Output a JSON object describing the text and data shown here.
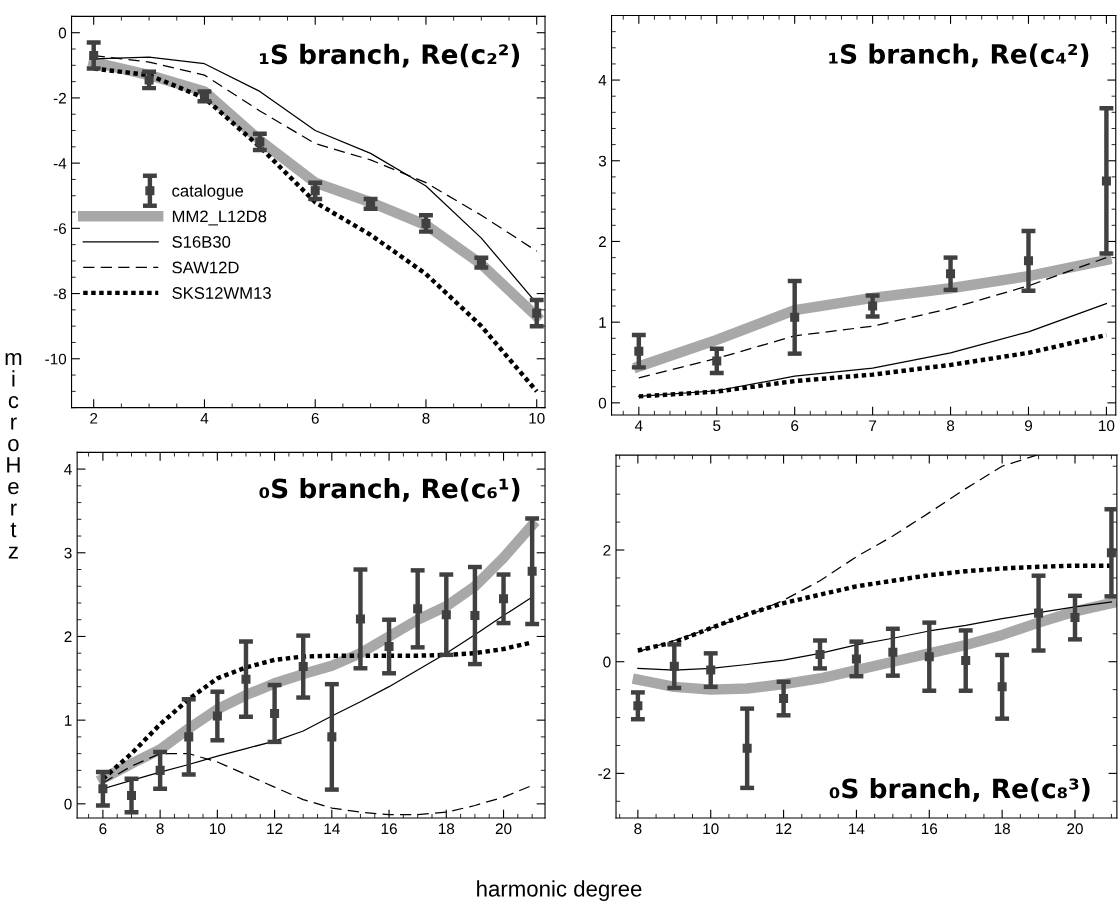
{
  "chart_data": [
    {
      "type": "line",
      "annotations": [
        "₁S branch, Re(c₂²)"
      ],
      "ylabel": "microHertz",
      "x": [
        2,
        3,
        4,
        5,
        6,
        7,
        8,
        9,
        10
      ],
      "xlim": [
        1.6,
        10.15
      ],
      "ylim": [
        -11.5,
        0.5
      ],
      "xticks": [
        2,
        4,
        6,
        8,
        10
      ],
      "yticks": [
        -10,
        -8,
        -6,
        -4,
        -2,
        0
      ],
      "legend": "center left",
      "grid": false,
      "series": [
        {
          "name": "catalogue",
          "type": "scatter",
          "marker": "square",
          "color": "#404040",
          "values": [
            -0.7,
            -1.45,
            -1.95,
            -3.35,
            -4.85,
            -5.25,
            -5.85,
            -7.05,
            -8.6
          ],
          "errors": [
            0.4,
            0.25,
            0.15,
            0.25,
            0.25,
            0.15,
            0.25,
            0.15,
            0.4
          ]
        },
        {
          "name": "MM2_L12D8",
          "color": "#a8a8a8",
          "line_style": "solid",
          "values": [
            -0.9,
            -1.3,
            -1.8,
            -3.3,
            -4.6,
            -5.2,
            -5.9,
            -7.1,
            -8.7
          ]
        },
        {
          "name": "S16B30",
          "color": "#000000",
          "line_style": "solid",
          "values": [
            -0.8,
            -0.75,
            -0.95,
            -1.8,
            -3.0,
            -3.7,
            -4.7,
            -6.3,
            -8.3
          ]
        },
        {
          "name": "SAW12D",
          "color": "#000000",
          "line_style": "dashed",
          "values": [
            -0.7,
            -0.9,
            -1.3,
            -2.4,
            -3.4,
            -3.9,
            -4.6,
            -5.6,
            -6.7
          ]
        },
        {
          "name": "SKS12WM13",
          "color": "#000000",
          "line_style": "dotted",
          "values": [
            -1.1,
            -1.3,
            -2.0,
            -3.5,
            -5.2,
            -6.2,
            -7.4,
            -9.0,
            -11.0
          ]
        }
      ]
    },
    {
      "type": "line",
      "annotations": [
        "₁S branch, Re(c₄²)"
      ],
      "x": [
        4,
        5,
        6,
        7,
        8,
        9,
        10
      ],
      "xlim": [
        3.65,
        10.12
      ],
      "ylim": [
        -0.15,
        4.8
      ],
      "xticks": [
        4,
        5,
        6,
        7,
        8,
        9,
        10
      ],
      "yticks": [
        0,
        1,
        2,
        3,
        4
      ],
      "grid": false,
      "series": [
        {
          "type": "scatter",
          "marker": "square",
          "color": "#404040",
          "values": [
            0.64,
            0.52,
            1.06,
            1.2,
            1.6,
            1.76,
            2.75
          ],
          "errors": [
            0.2,
            0.15,
            0.45,
            0.13,
            0.2,
            0.37,
            0.9
          ]
        },
        {
          "color": "#a8a8a8",
          "line_style": "solid",
          "values": [
            0.45,
            0.78,
            1.15,
            1.3,
            1.42,
            1.57,
            1.77
          ]
        },
        {
          "color": "#000000",
          "line_style": "solid",
          "values": [
            0.08,
            0.15,
            0.33,
            0.43,
            0.62,
            0.88,
            1.23
          ]
        },
        {
          "color": "#000000",
          "line_style": "dashed",
          "values": [
            0.31,
            0.55,
            0.83,
            0.95,
            1.17,
            1.45,
            1.8
          ]
        },
        {
          "color": "#000000",
          "line_style": "dotted",
          "values": [
            0.08,
            0.14,
            0.27,
            0.35,
            0.47,
            0.62,
            0.84
          ]
        }
      ]
    },
    {
      "type": "line",
      "annotations": [
        "₀S branch, Re(c₆¹)"
      ],
      "xlabel": "harmonic degree",
      "x": [
        6,
        7,
        8,
        9,
        10,
        11,
        12,
        13,
        14,
        15,
        16,
        17,
        18,
        19,
        20,
        21
      ],
      "xlim": [
        5.1,
        21.45
      ],
      "ylim": [
        -0.17,
        4.2
      ],
      "xticks": [
        6,
        8,
        10,
        12,
        14,
        16,
        18,
        20
      ],
      "yticks": [
        0,
        1,
        2,
        3,
        4
      ],
      "grid": false,
      "series": [
        {
          "type": "scatter",
          "marker": "square",
          "color": "#404040",
          "values": [
            0.18,
            0.1,
            0.4,
            0.8,
            1.05,
            1.49,
            1.08,
            1.64,
            0.8,
            2.21,
            1.88,
            2.33,
            2.26,
            2.25,
            2.45,
            2.78
          ],
          "errors": [
            0.2,
            0.2,
            0.22,
            0.45,
            0.29,
            0.45,
            0.34,
            0.37,
            0.63,
            0.59,
            0.32,
            0.46,
            0.48,
            0.58,
            0.29,
            0.63
          ]
        },
        {
          "color": "#a8a8a8",
          "line_style": "solid",
          "values": [
            0.3,
            0.48,
            0.65,
            0.9,
            1.13,
            1.3,
            1.44,
            1.55,
            1.65,
            1.8,
            2.0,
            2.2,
            2.36,
            2.6,
            2.94,
            3.33
          ]
        },
        {
          "color": "#000000",
          "line_style": "solid",
          "values": [
            0.18,
            0.28,
            0.38,
            0.47,
            0.57,
            0.66,
            0.75,
            0.87,
            1.05,
            1.22,
            1.4,
            1.6,
            1.8,
            2.02,
            2.25,
            2.47
          ]
        },
        {
          "color": "#000000",
          "line_style": "dashed",
          "values": [
            0.25,
            0.45,
            0.6,
            0.6,
            0.5,
            0.35,
            0.2,
            0.05,
            -0.05,
            -0.1,
            -0.13,
            -0.13,
            -0.1,
            -0.02,
            0.08,
            0.22
          ]
        },
        {
          "color": "#000000",
          "line_style": "dotted",
          "values": [
            0.3,
            0.6,
            0.95,
            1.25,
            1.5,
            1.63,
            1.72,
            1.76,
            1.77,
            1.77,
            1.77,
            1.77,
            1.78,
            1.8,
            1.85,
            1.93
          ]
        }
      ]
    },
    {
      "type": "line",
      "annotations": [
        "₀S branch, Re(c₈³)"
      ],
      "x": [
        8,
        9,
        10,
        11,
        12,
        13,
        14,
        15,
        16,
        17,
        18,
        19,
        20,
        21
      ],
      "xlim": [
        7.4,
        21.15
      ],
      "ylim": [
        -2.8,
        3.7
      ],
      "xticks": [
        8,
        10,
        12,
        14,
        16,
        18,
        20
      ],
      "yticks": [
        -2,
        0,
        2
      ],
      "grid": false,
      "series": [
        {
          "type": "scatter",
          "marker": "square",
          "color": "#404040",
          "values": [
            -0.79,
            -0.08,
            -0.15,
            -1.55,
            -0.66,
            0.13,
            0.05,
            0.17,
            0.09,
            0.02,
            -0.45,
            0.87,
            0.79,
            1.95
          ],
          "errors": [
            0.24,
            0.39,
            0.3,
            0.71,
            0.3,
            0.25,
            0.31,
            0.42,
            0.61,
            0.54,
            0.57,
            0.67,
            0.39,
            0.78
          ]
        },
        {
          "color": "#a8a8a8",
          "line_style": "solid",
          "values": [
            -0.32,
            -0.45,
            -0.5,
            -0.48,
            -0.4,
            -0.3,
            -0.15,
            0.0,
            0.15,
            0.3,
            0.48,
            0.7,
            0.9,
            1.05
          ]
        },
        {
          "color": "#000000",
          "line_style": "solid",
          "values": [
            -0.12,
            -0.15,
            -0.12,
            -0.05,
            0.03,
            0.15,
            0.3,
            0.42,
            0.55,
            0.65,
            0.77,
            0.88,
            0.98,
            1.07
          ]
        },
        {
          "color": "#000000",
          "line_style": "dashed",
          "x": [
            8,
            9,
            10,
            11,
            12,
            13,
            14,
            15,
            16,
            17,
            18,
            18.95
          ],
          "values": [
            0.18,
            0.38,
            0.6,
            0.82,
            1.1,
            1.45,
            1.88,
            2.25,
            2.67,
            3.1,
            3.5,
            3.7
          ]
        },
        {
          "color": "#000000",
          "line_style": "dotted",
          "values": [
            0.2,
            0.35,
            0.6,
            0.85,
            1.05,
            1.2,
            1.35,
            1.45,
            1.55,
            1.62,
            1.67,
            1.7,
            1.72,
            1.72
          ]
        }
      ]
    }
  ]
}
